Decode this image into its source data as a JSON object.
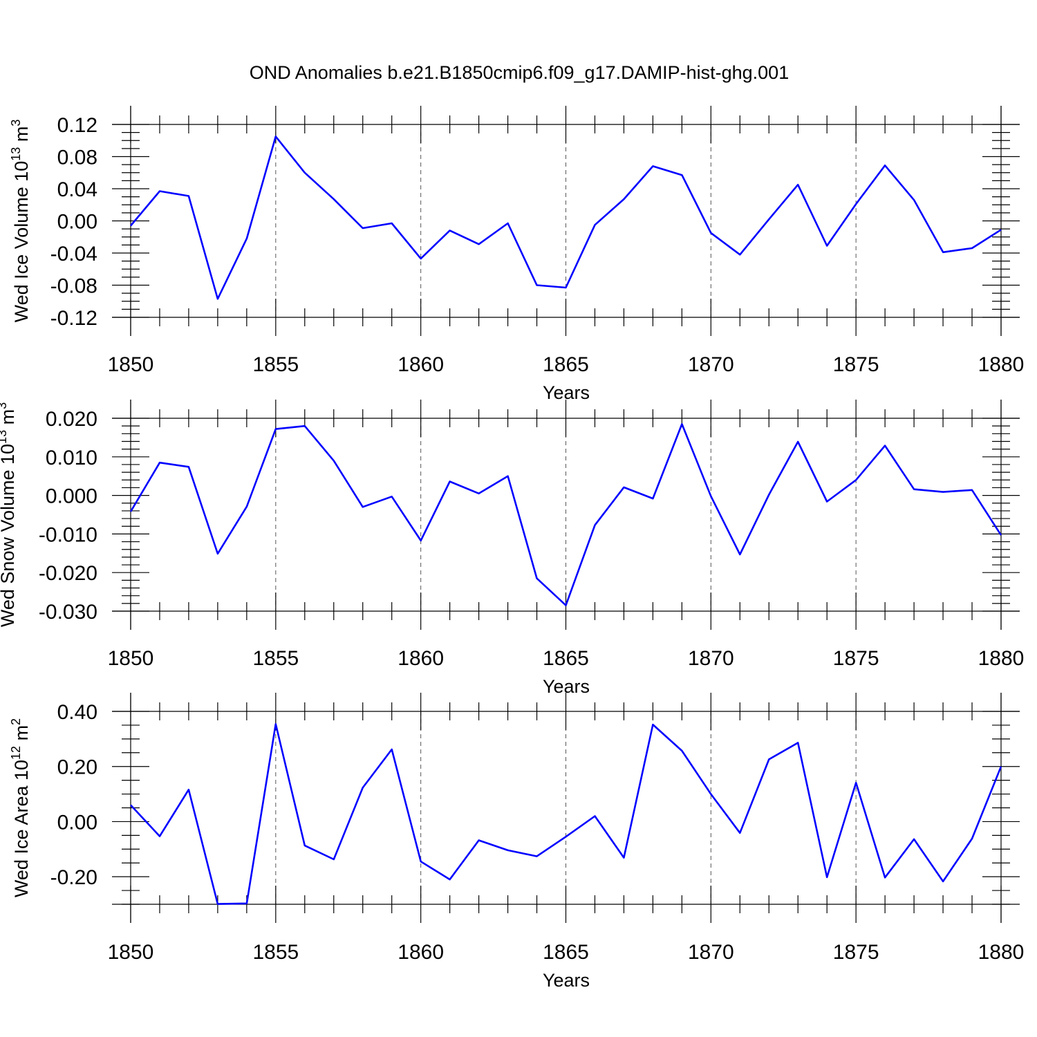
{
  "title": "OND Anomalies b.e21.B1850cmip6.f09_g17.DAMIP-hist-ghg.001",
  "line_color": "#0000ff",
  "chart_data": [
    {
      "type": "line",
      "id": "ice-volume",
      "ylabel": {
        "main": "Wed Ice Volume 10",
        "exp": "13",
        "unit": " m",
        "unit_exp": "3"
      },
      "xlabel": "Years",
      "xlim": [
        1850,
        1880
      ],
      "ylim": [
        -0.12,
        0.12
      ],
      "yticks": [
        -0.12,
        -0.08,
        -0.04,
        0.0,
        0.04,
        0.08,
        0.12
      ],
      "ytick_labels": [
        "-0.12",
        "-0.08",
        "-0.04",
        "0.00",
        "0.04",
        "0.08",
        "0.12"
      ],
      "xticks": [
        1850,
        1855,
        1860,
        1865,
        1870,
        1875,
        1880
      ],
      "xtick_labels": [
        "1850",
        "1855",
        "1860",
        "1865",
        "1870",
        "1875",
        "1880"
      ],
      "x": [
        1850,
        1851,
        1852,
        1853,
        1854,
        1855,
        1856,
        1857,
        1858,
        1859,
        1860,
        1861,
        1862,
        1863,
        1864,
        1865,
        1866,
        1867,
        1868,
        1869,
        1870,
        1871,
        1872,
        1873,
        1874,
        1875,
        1876,
        1877,
        1878,
        1879,
        1880
      ],
      "y": [
        -0.006,
        0.037,
        0.031,
        -0.097,
        -0.022,
        0.105,
        0.06,
        0.027,
        -0.009,
        -0.003,
        -0.047,
        -0.012,
        -0.029,
        -0.003,
        -0.08,
        -0.083,
        -0.005,
        0.027,
        0.068,
        0.057,
        -0.015,
        -0.042,
        0.002,
        0.045,
        -0.031,
        0.021,
        0.069,
        0.026,
        -0.039,
        -0.034,
        -0.011
      ]
    },
    {
      "type": "line",
      "id": "snow-volume",
      "ylabel": {
        "main": "Wed Snow Volume 10",
        "exp": "13",
        "unit": " m",
        "unit_exp": "3"
      },
      "xlabel": "Years",
      "xlim": [
        1850,
        1880
      ],
      "ylim": [
        -0.03,
        0.02
      ],
      "yticks": [
        -0.03,
        -0.02,
        -0.01,
        0.0,
        0.01,
        0.02
      ],
      "ytick_labels": [
        "-0.030",
        "-0.020",
        "-0.010",
        "0.000",
        "0.010",
        "0.020"
      ],
      "xticks": [
        1850,
        1855,
        1860,
        1865,
        1870,
        1875,
        1880
      ],
      "xtick_labels": [
        "1850",
        "1855",
        "1860",
        "1865",
        "1870",
        "1875",
        "1880"
      ],
      "x": [
        1850,
        1851,
        1852,
        1853,
        1854,
        1855,
        1856,
        1857,
        1858,
        1859,
        1860,
        1861,
        1862,
        1863,
        1864,
        1865,
        1866,
        1867,
        1868,
        1869,
        1870,
        1871,
        1872,
        1873,
        1874,
        1875,
        1876,
        1877,
        1878,
        1879,
        1880
      ],
      "y": [
        -0.0042,
        0.0085,
        0.0074,
        -0.0151,
        -0.0029,
        0.0172,
        0.018,
        0.009,
        -0.003,
        -0.0003,
        -0.0117,
        0.0036,
        0.0005,
        0.005,
        -0.0215,
        -0.0285,
        -0.0077,
        0.0021,
        -0.0008,
        0.0185,
        -0.0002,
        -0.0153,
        0.0002,
        0.0139,
        -0.0016,
        0.004,
        0.0129,
        0.0016,
        0.0009,
        0.0014,
        -0.0103
      ]
    },
    {
      "type": "line",
      "id": "ice-area",
      "ylabel": {
        "main": "Wed Ice Area 10",
        "exp": "12",
        "unit": " m",
        "unit_exp": "2"
      },
      "xlabel": "Years",
      "xlim": [
        1850,
        1880
      ],
      "ylim": [
        -0.3,
        0.4
      ],
      "yticks": [
        -0.2,
        0.0,
        0.2,
        0.4
      ],
      "ytick_labels": [
        "-0.20",
        "0.00",
        "0.20",
        "0.40"
      ],
      "xticks": [
        1850,
        1855,
        1860,
        1865,
        1870,
        1875,
        1880
      ],
      "xtick_labels": [
        "1850",
        "1855",
        "1860",
        "1865",
        "1870",
        "1875",
        "1880"
      ],
      "x": [
        1850,
        1851,
        1852,
        1853,
        1854,
        1855,
        1856,
        1857,
        1858,
        1859,
        1860,
        1861,
        1862,
        1863,
        1864,
        1865,
        1866,
        1867,
        1868,
        1869,
        1870,
        1871,
        1872,
        1873,
        1874,
        1875,
        1876,
        1877,
        1878,
        1879,
        1880
      ],
      "y": [
        0.06,
        -0.053,
        0.116,
        -0.299,
        -0.297,
        0.354,
        -0.087,
        -0.137,
        0.123,
        0.262,
        -0.145,
        -0.21,
        -0.068,
        -0.104,
        -0.126,
        -0.055,
        0.02,
        -0.131,
        0.352,
        0.257,
        0.1,
        -0.041,
        0.226,
        0.286,
        -0.202,
        0.141,
        -0.203,
        -0.064,
        -0.217,
        -0.062,
        0.2
      ]
    }
  ]
}
